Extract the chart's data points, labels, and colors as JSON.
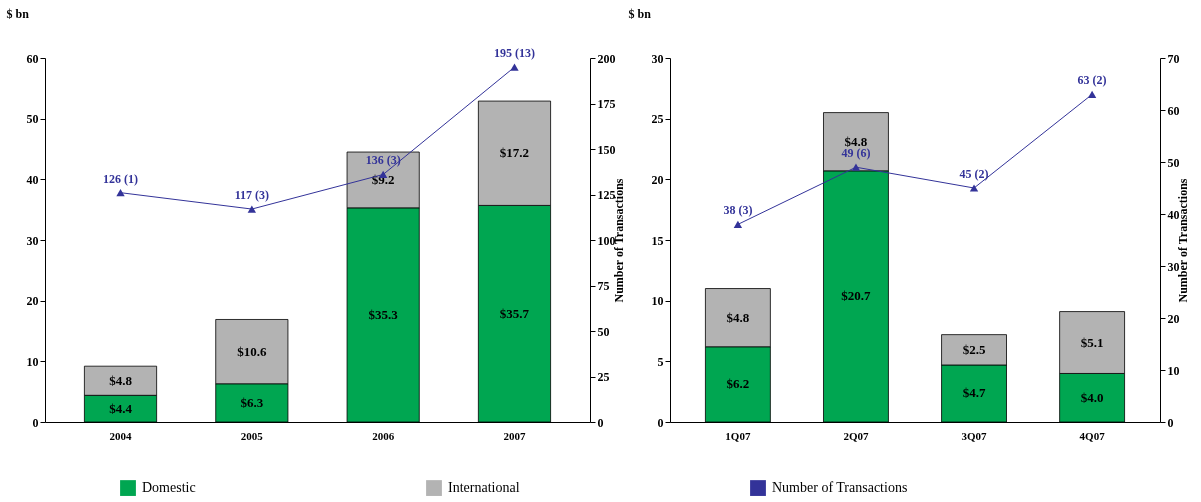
{
  "chart_data": [
    {
      "type": "bar",
      "ylabel": "$ bn",
      "y2label": "Number of Transactions",
      "categories": [
        "2004",
        "2005",
        "2006",
        "2007"
      ],
      "stacked": true,
      "legend": "bottom",
      "ylim": [
        0,
        60
      ],
      "yticks": [
        0,
        10,
        20,
        30,
        40,
        50,
        60
      ],
      "y2lim": [
        0,
        200
      ],
      "y2ticks": [
        0,
        25,
        50,
        75,
        100,
        125,
        150,
        175,
        200
      ],
      "series": [
        {
          "name": "Domestic",
          "color": "#00a651",
          "values": [
            4.4,
            6.3,
            35.3,
            35.7
          ],
          "value_labels": [
            "$4.4",
            "$6.3",
            "$35.3",
            "$35.7"
          ]
        },
        {
          "name": "International",
          "color": "#b3b3b3",
          "values": [
            4.8,
            10.6,
            9.2,
            17.2
          ],
          "value_labels": [
            "$4.8",
            "$10.6",
            "$9.2",
            "$17.2"
          ]
        },
        {
          "name": "Number of Transactions",
          "type": "line",
          "axis": "y2",
          "marker": "triangle",
          "color": "#333399",
          "values": [
            126,
            117,
            136,
            195
          ],
          "value_labels": [
            "126 (1)",
            "117 (3)",
            "136 (3)",
            "195 (13)"
          ]
        }
      ]
    },
    {
      "type": "bar",
      "ylabel": "$ bn",
      "y2label": "Number of Transactions",
      "categories": [
        "1Q07",
        "2Q07",
        "3Q07",
        "4Q07"
      ],
      "stacked": true,
      "ylim": [
        0,
        30
      ],
      "yticks": [
        0,
        5,
        10,
        15,
        20,
        25,
        30
      ],
      "y2lim": [
        0,
        70
      ],
      "y2ticks": [
        0,
        10,
        20,
        30,
        40,
        50,
        60,
        70
      ],
      "series": [
        {
          "color": "#00a651",
          "values": [
            6.2,
            20.7,
            4.7,
            4.0
          ],
          "value_labels": [
            "$6.2",
            "$20.7",
            "$4.7",
            "$4.0"
          ]
        },
        {
          "color": "#b3b3b3",
          "values": [
            4.8,
            4.8,
            2.5,
            5.1
          ],
          "value_labels": [
            "$4.8",
            "$4.8",
            "$2.5",
            "$5.1"
          ]
        },
        {
          "type": "line",
          "axis": "y2",
          "marker": "triangle",
          "color": "#333399",
          "values": [
            38,
            49,
            45,
            63
          ],
          "value_labels": [
            "38 (3)",
            "49 (6)",
            "45 (2)",
            "63 (2)"
          ]
        }
      ]
    }
  ]
}
